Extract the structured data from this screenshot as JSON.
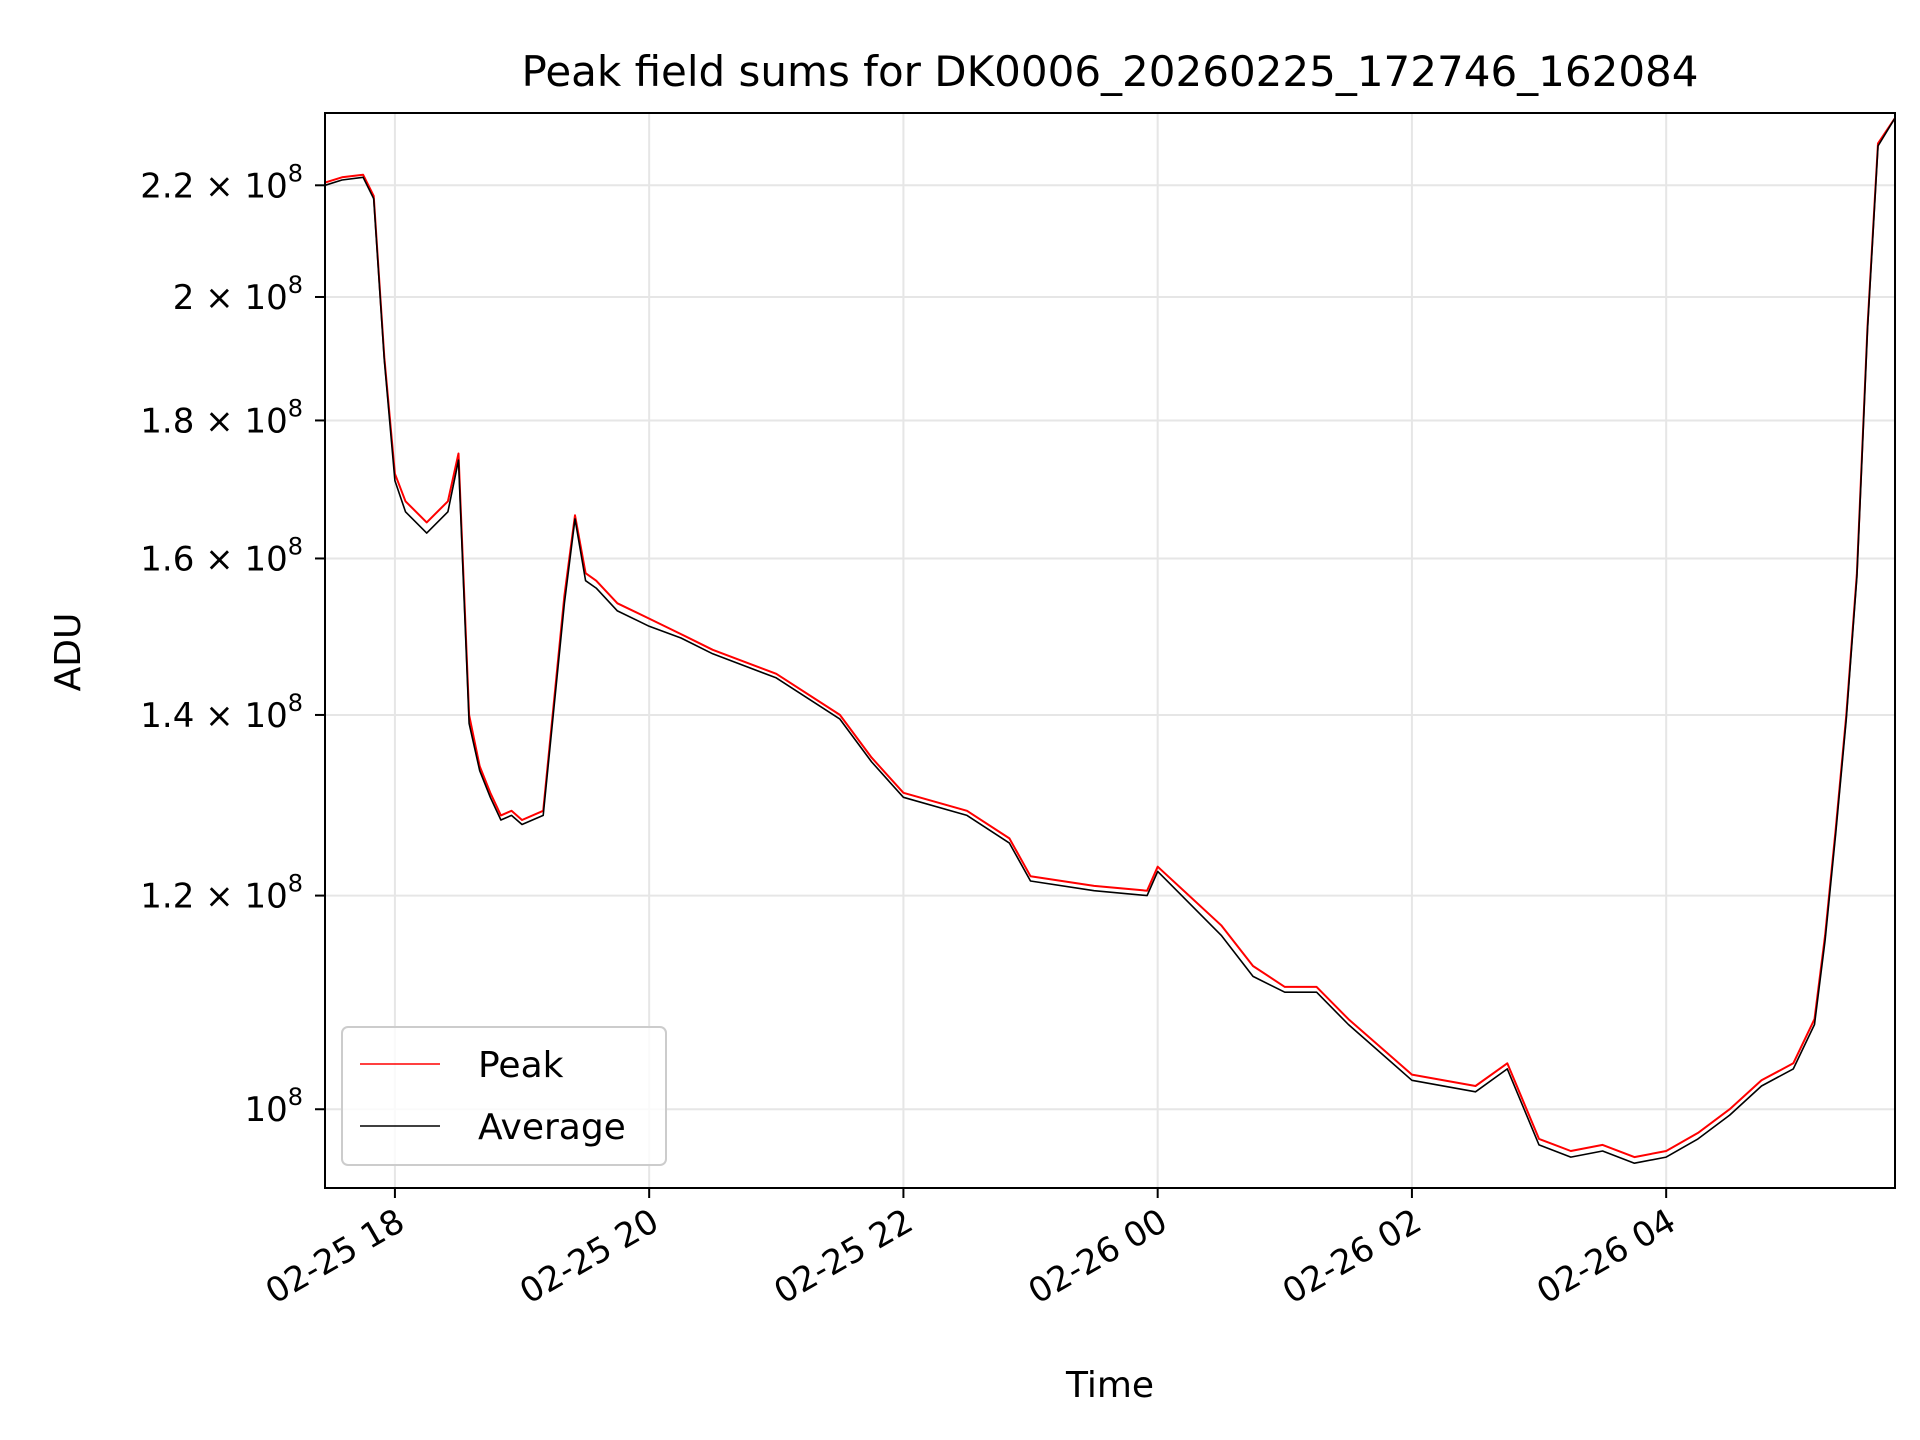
{
  "chart_data": {
    "type": "line",
    "title": "Peak field sums for DK0006_20260225_172746_162084",
    "xlabel": "Time",
    "ylabel": "ADU",
    "yscale": "log",
    "ylim": [
      93500000,
      234000000
    ],
    "xlim": [
      "02-25 17:27",
      "02-26 05:48"
    ],
    "grid": true,
    "legend_position": "lower-left",
    "x_ticks": [
      {
        "x": "02-25 18:00",
        "label": "02-25 18"
      },
      {
        "x": "02-25 20:00",
        "label": "02-25 20"
      },
      {
        "x": "02-25 22:00",
        "label": "02-25 22"
      },
      {
        "x": "02-26 00:00",
        "label": "02-26 00"
      },
      {
        "x": "02-26 02:00",
        "label": "02-26 02"
      },
      {
        "x": "02-26 04:00",
        "label": "02-26 04"
      }
    ],
    "y_ticks": [
      {
        "value": 220000000,
        "mantissa": "2.2",
        "exponent": "8"
      },
      {
        "value": 200000000,
        "mantissa": "2",
        "exponent": "8"
      },
      {
        "value": 180000000,
        "mantissa": "1.8",
        "exponent": "8"
      },
      {
        "value": 160000000,
        "mantissa": "1.6",
        "exponent": "8"
      },
      {
        "value": 140000000,
        "mantissa": "1.4",
        "exponent": "8"
      },
      {
        "value": 120000000,
        "mantissa": "1.2",
        "exponent": "8"
      },
      {
        "value": 100000000,
        "mantissa": "",
        "exponent": "8"
      }
    ],
    "tick_base": "10",
    "times_sign": "×",
    "series": [
      {
        "name": "Peak",
        "color": "#ff0000",
        "x": [
          "02-25 17:27",
          "02-25 17:35",
          "02-25 17:45",
          "02-25 17:50",
          "02-25 17:55",
          "02-25 18:00",
          "02-25 18:05",
          "02-25 18:15",
          "02-25 18:25",
          "02-25 18:30",
          "02-25 18:35",
          "02-25 18:40",
          "02-25 18:45",
          "02-25 18:50",
          "02-25 18:55",
          "02-25 19:00",
          "02-25 19:10",
          "02-25 19:20",
          "02-25 19:25",
          "02-25 19:30",
          "02-25 19:35",
          "02-25 19:45",
          "02-25 20:00",
          "02-25 20:15",
          "02-25 20:30",
          "02-25 21:00",
          "02-25 21:30",
          "02-25 21:45",
          "02-25 22:00",
          "02-25 22:30",
          "02-25 22:50",
          "02-25 23:00",
          "02-25 23:30",
          "02-25 23:55",
          "02-26 00:00",
          "02-26 00:30",
          "02-26 00:45",
          "02-26 01:00",
          "02-26 01:15",
          "02-26 01:30",
          "02-26 02:00",
          "02-26 02:30",
          "02-26 02:45",
          "02-26 03:00",
          "02-26 03:15",
          "02-26 03:30",
          "02-26 03:45",
          "02-26 04:00",
          "02-26 04:15",
          "02-26 04:30",
          "02-26 04:45",
          "02-26 05:00",
          "02-26 05:10",
          "02-26 05:15",
          "02-26 05:20",
          "02-26 05:25",
          "02-26 05:30",
          "02-26 05:35",
          "02-26 05:40",
          "02-26 05:48"
        ],
        "values": [
          220500000,
          221500000,
          222000000,
          218000000,
          190000000,
          172000000,
          168000000,
          165000000,
          168000000,
          175000000,
          140000000,
          134000000,
          131000000,
          128500000,
          129000000,
          128000000,
          129000000,
          155000000,
          166000000,
          158000000,
          157000000,
          154000000,
          152000000,
          150000000,
          148000000,
          145000000,
          140000000,
          135000000,
          131000000,
          129000000,
          126000000,
          122000000,
          121000000,
          120500000,
          123000000,
          117000000,
          113000000,
          111000000,
          111000000,
          108000000,
          103000000,
          102000000,
          104000000,
          97500000,
          96500000,
          97000000,
          96000000,
          96500000,
          98000000,
          100000000,
          102500000,
          104000000,
          108000000,
          116000000,
          127000000,
          140000000,
          158000000,
          195000000,
          228000000,
          233000000
        ]
      },
      {
        "name": "Average",
        "color": "#000000",
        "x": [
          "02-25 17:27",
          "02-25 17:35",
          "02-25 17:45",
          "02-25 17:50",
          "02-25 17:55",
          "02-25 18:00",
          "02-25 18:05",
          "02-25 18:15",
          "02-25 18:25",
          "02-25 18:30",
          "02-25 18:35",
          "02-25 18:40",
          "02-25 18:45",
          "02-25 18:50",
          "02-25 18:55",
          "02-25 19:00",
          "02-25 19:10",
          "02-25 19:20",
          "02-25 19:25",
          "02-25 19:30",
          "02-25 19:35",
          "02-25 19:45",
          "02-25 20:00",
          "02-25 20:15",
          "02-25 20:30",
          "02-25 21:00",
          "02-25 21:30",
          "02-25 21:45",
          "02-25 22:00",
          "02-25 22:30",
          "02-25 22:50",
          "02-25 23:00",
          "02-25 23:30",
          "02-25 23:55",
          "02-26 00:00",
          "02-26 00:30",
          "02-26 00:45",
          "02-26 01:00",
          "02-26 01:15",
          "02-26 01:30",
          "02-26 02:00",
          "02-26 02:30",
          "02-26 02:45",
          "02-26 03:00",
          "02-26 03:15",
          "02-26 03:30",
          "02-26 03:45",
          "02-26 04:00",
          "02-26 04:15",
          "02-26 04:30",
          "02-26 04:45",
          "02-26 05:00",
          "02-26 05:10",
          "02-26 05:15",
          "02-26 05:20",
          "02-26 05:25",
          "02-26 05:30",
          "02-26 05:35",
          "02-26 05:40",
          "02-26 05:48"
        ],
        "values": [
          220000000,
          221000000,
          221500000,
          217500000,
          189500000,
          171000000,
          166500000,
          163500000,
          166500000,
          174000000,
          139000000,
          133500000,
          130500000,
          128000000,
          128500000,
          127500000,
          128500000,
          154000000,
          165500000,
          157000000,
          156000000,
          153000000,
          151000000,
          149500000,
          147500000,
          144500000,
          139500000,
          134500000,
          130500000,
          128500000,
          125500000,
          121500000,
          120500000,
          120000000,
          122500000,
          116000000,
          112000000,
          110500000,
          110500000,
          107500000,
          102500000,
          101500000,
          103500000,
          97000000,
          96000000,
          96500000,
          95500000,
          96000000,
          97500000,
          99500000,
          102000000,
          103500000,
          107500000,
          115500000,
          126500000,
          139500000,
          157500000,
          194500000,
          227500000,
          233000000
        ]
      }
    ]
  }
}
